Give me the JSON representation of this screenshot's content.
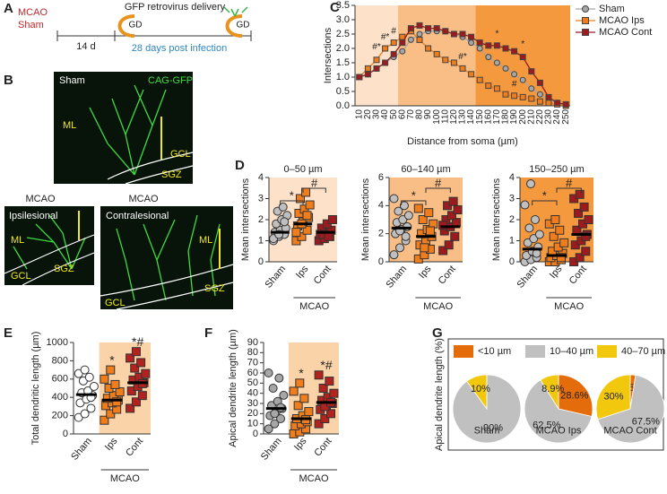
{
  "panels": [
    "A",
    "B",
    "C",
    "D",
    "E",
    "F",
    "G"
  ],
  "diagram": {
    "mcao": "MCAO",
    "sham": "Sham",
    "delivery": "GFP retrovirus delivery",
    "gd": [
      "GD",
      "GD"
    ],
    "interval": "14 d",
    "post": "28 days post infection"
  },
  "micrographs": [
    {
      "group": "Sham",
      "stain": "CAG-GFP",
      "labels": [
        "ML",
        "GCL",
        "SGZ"
      ]
    },
    {
      "group": "MCAO",
      "side": "Ipsilesional",
      "labels": [
        "ML",
        "GCL",
        "SGZ"
      ]
    },
    {
      "group": "MCAO",
      "side": "Contralesional",
      "labels": [
        "ML",
        "GCL",
        "SGZ"
      ]
    }
  ],
  "chart_data": [
    {
      "type": "line",
      "xlabel": "Distance from soma (µm)",
      "ylabel": "Intersections",
      "categories": [
        "10",
        "20",
        "30",
        "40",
        "50",
        "60",
        "70",
        "80",
        "90",
        "100",
        "110",
        "120",
        "130",
        "140",
        "150",
        "160",
        "170",
        "180",
        "190",
        "200",
        "210",
        "220",
        "230",
        "240",
        "250"
      ],
      "ylim": [
        0,
        3.5
      ],
      "yticks": [
        {
          "value": 0,
          "label": "0.0"
        },
        0.5,
        {
          "value": 1,
          "label": "1.0"
        },
        1.5,
        {
          "value": 2,
          "label": "2.0"
        },
        2.5,
        {
          "value": 3,
          "label": "3.0"
        },
        3.5
      ],
      "bands": [
        {
          "from": "10",
          "to": "50",
          "color": "#fde1c8"
        },
        {
          "from": "60",
          "to": "140",
          "color": "#f9bd86"
        },
        {
          "from": "150",
          "to": "250",
          "color": "#f5993f"
        }
      ],
      "series": [
        {
          "name": "Sham",
          "color": "#a6a6a6",
          "marker": "circle",
          "values": [
            1.0,
            1.1,
            1.3,
            1.5,
            1.7,
            1.9,
            2.3,
            2.5,
            2.6,
            2.6,
            2.6,
            2.5,
            2.4,
            2.2,
            2.0,
            1.7,
            1.5,
            1.3,
            1.1,
            0.9,
            0.6,
            0.4,
            0.2,
            0.1,
            0.05
          ]
        },
        {
          "name": "MCAO Ips",
          "color": "#f07d1c",
          "marker": "square",
          "values": [
            1.0,
            1.3,
            1.6,
            2.0,
            2.2,
            2.4,
            2.6,
            2.3,
            2.0,
            1.8,
            1.6,
            1.5,
            1.3,
            1.1,
            0.9,
            0.7,
            0.6,
            0.4,
            0.35,
            0.3,
            0.25,
            0.15,
            0.1,
            0.05,
            0.0
          ]
        },
        {
          "name": "MCAO Cont",
          "color": "#9b1b1e",
          "marker": "square",
          "values": [
            1.0,
            1.1,
            1.3,
            1.5,
            1.8,
            2.2,
            2.7,
            2.8,
            2.7,
            2.7,
            2.6,
            2.5,
            2.5,
            2.4,
            2.2,
            2.1,
            2.1,
            2.0,
            1.9,
            1.7,
            1.2,
            0.8,
            0.3,
            0.1,
            0.05
          ]
        }
      ],
      "annotations": [
        {
          "x": "30",
          "y": 2.05,
          "text": "#*"
        },
        {
          "x": "40",
          "y": 2.4,
          "text": "#*"
        },
        {
          "x": "50",
          "y": 2.6,
          "text": "#"
        },
        {
          "x": "130",
          "y": 1.7,
          "text": "#*"
        },
        {
          "x": "170",
          "y": 2.5,
          "text": "*"
        },
        {
          "x": "200",
          "y": 2.15,
          "text": "*"
        },
        {
          "x": "190",
          "y": 0.75,
          "text": "#"
        }
      ]
    },
    {
      "type": "strip",
      "title": "0–50 µm",
      "ylabel": "Mean intersections",
      "categories": [
        "Sham",
        "Ips",
        "Cont"
      ],
      "ylim": [
        0,
        4
      ],
      "yticks": [
        0,
        1,
        2,
        3,
        4
      ],
      "bands": [
        {
          "from": "Sham",
          "to": "Cont",
          "color": "#fde1c8"
        }
      ],
      "group_label": {
        "text": "MCAO",
        "from": "Ips",
        "to": "Cont"
      },
      "brackets": [
        {
          "from": "Sham",
          "to": "Ips",
          "text": "*"
        },
        {
          "from": "Ips",
          "to": "Cont",
          "text": "#"
        }
      ],
      "groups": [
        {
          "color": "#bfbfbf",
          "marker": "circle",
          "mean": 1.4,
          "values": [
            1.0,
            1.2,
            1.3,
            1.4,
            1.5,
            1.6,
            1.8,
            2.0,
            2.2,
            2.4,
            2.6,
            1.1,
            1.3,
            1.9
          ]
        },
        {
          "color": "#f07d1c",
          "marker": "square",
          "mean": 1.8,
          "values": [
            1.0,
            1.2,
            1.5,
            1.7,
            1.9,
            2.1,
            2.3,
            2.5,
            2.7,
            3.0,
            3.3,
            1.4,
            1.8,
            2.2
          ]
        },
        {
          "color": "#9b1b1e",
          "marker": "square",
          "mean": 1.4,
          "values": [
            1.0,
            1.1,
            1.2,
            1.3,
            1.4,
            1.5,
            1.6,
            1.8,
            2.0,
            1.3,
            1.2
          ]
        }
      ]
    },
    {
      "type": "strip",
      "title": "60–140 µm",
      "ylabel": "Mean intersections",
      "categories": [
        "Sham",
        "Ips",
        "Cont"
      ],
      "ylim": [
        0,
        6
      ],
      "yticks": [
        0,
        2,
        4,
        6
      ],
      "bands": [
        {
          "from": "Sham",
          "to": "Cont",
          "color": "#f9bd86"
        }
      ],
      "group_label": {
        "text": "MCAO",
        "from": "Ips",
        "to": "Cont"
      },
      "brackets": [
        {
          "from": "Sham",
          "to": "Ips",
          "text": "*"
        },
        {
          "from": "Ips",
          "to": "Cont",
          "text": "#"
        }
      ],
      "groups": [
        {
          "color": "#bfbfbf",
          "marker": "circle",
          "mean": 2.4,
          "values": [
            0.5,
            1.0,
            1.5,
            2.0,
            2.3,
            2.5,
            2.8,
            3.0,
            3.3,
            3.6,
            4.0,
            4.5,
            2.2,
            1.8
          ]
        },
        {
          "color": "#f07d1c",
          "marker": "square",
          "mean": 1.8,
          "values": [
            0.2,
            0.5,
            0.9,
            1.2,
            1.5,
            1.8,
            2.0,
            2.3,
            2.7,
            3.0,
            3.5,
            3.8,
            1.0,
            2.2
          ]
        },
        {
          "color": "#9b1b1e",
          "marker": "square",
          "mean": 2.5,
          "values": [
            0.8,
            1.2,
            1.8,
            2.2,
            2.5,
            2.8,
            3.0,
            3.3,
            3.7,
            4.0,
            4.3,
            2.6
          ]
        }
      ]
    },
    {
      "type": "strip",
      "title": "150–250 µm",
      "ylabel": "Mean intersections",
      "categories": [
        "Sham",
        "Ips",
        "Cont"
      ],
      "ylim": [
        0,
        4
      ],
      "yticks": [
        0,
        1,
        2,
        3,
        4
      ],
      "bands": [
        {
          "from": "Sham",
          "to": "Cont",
          "color": "#f5993f"
        }
      ],
      "group_label": {
        "text": "MCAO",
        "from": "Ips",
        "to": "Cont"
      },
      "brackets": [
        {
          "from": "Sham",
          "to": "Ips",
          "text": "*"
        },
        {
          "from": "Ips",
          "to": "Cont",
          "text": "#"
        }
      ],
      "groups": [
        {
          "color": "#bfbfbf",
          "marker": "circle",
          "mean": 0.6,
          "values": [
            0,
            0.1,
            0.2,
            0.3,
            0.5,
            0.7,
            0.9,
            1.1,
            1.3,
            1.6,
            2.0,
            2.7,
            3.7,
            0.4
          ]
        },
        {
          "color": "#f07d1c",
          "marker": "square",
          "mean": 0.3,
          "values": [
            0,
            0,
            0.1,
            0.2,
            0.3,
            0.4,
            0.5,
            0.7,
            0.9,
            1.2,
            1.5,
            1.8,
            2.0,
            0.2
          ]
        },
        {
          "color": "#9b1b1e",
          "marker": "square",
          "mean": 1.3,
          "values": [
            0,
            0.2,
            0.5,
            0.8,
            1.0,
            1.3,
            1.5,
            1.8,
            2.0,
            2.3,
            2.6,
            3.0,
            3.2,
            1.2
          ]
        }
      ]
    },
    {
      "type": "strip",
      "ylabel": "Total dendritic length (µm)",
      "categories": [
        "Sham",
        "Ips",
        "Cont"
      ],
      "ylim": [
        0,
        1000
      ],
      "yticks": [
        0,
        200,
        400,
        600,
        800,
        1000
      ],
      "bands": [
        {
          "from": "Ips",
          "to": "Cont",
          "color": "#fbd3a8"
        }
      ],
      "group_label": {
        "text": "MCAO",
        "from": "Ips",
        "to": "Cont"
      },
      "annotations": [
        null,
        "*",
        "*#"
      ],
      "groups": [
        {
          "color": "#ffffff",
          "marker": "circle",
          "mean": 430,
          "values": [
            180,
            220,
            280,
            340,
            380,
            420,
            450,
            470,
            520,
            580,
            620,
            660,
            700,
            400
          ]
        },
        {
          "color": "#f07d1c",
          "marker": "square",
          "mean": 370,
          "values": [
            150,
            220,
            270,
            310,
            340,
            370,
            390,
            420,
            460,
            500,
            540,
            600,
            700,
            350
          ]
        },
        {
          "color": "#b2221f",
          "marker": "square",
          "mean": 560,
          "values": [
            280,
            350,
            420,
            470,
            520,
            560,
            590,
            620,
            660,
            720,
            780,
            830,
            900,
            550
          ]
        }
      ]
    },
    {
      "type": "strip",
      "ylabel": "Apical dendrite length (µm)",
      "categories": [
        "Sham",
        "Ips",
        "Cont"
      ],
      "ylim": [
        0,
        90
      ],
      "yticks": [
        0,
        10,
        20,
        30,
        40,
        50,
        60,
        70,
        80,
        90
      ],
      "bands": [
        {
          "from": "Ips",
          "to": "Cont",
          "color": "#fbd3a8"
        }
      ],
      "group_label": {
        "text": "MCAO",
        "from": "Ips",
        "to": "Cont"
      },
      "annotations": [
        null,
        "*",
        "*#"
      ],
      "groups": [
        {
          "color": "#a6a6a6",
          "marker": "circle",
          "mean": 25,
          "values": [
            5,
            10,
            15,
            18,
            22,
            25,
            28,
            32,
            38,
            45,
            55,
            60,
            20,
            26
          ]
        },
        {
          "color": "#f07d1c",
          "marker": "square",
          "mean": 15,
          "values": [
            0,
            2,
            5,
            8,
            10,
            12,
            15,
            18,
            22,
            28,
            35,
            42,
            50,
            14
          ]
        },
        {
          "color": "#b2221f",
          "marker": "square",
          "mean": 31,
          "values": [
            10,
            15,
            20,
            24,
            28,
            30,
            33,
            36,
            40,
            45,
            52,
            58,
            27,
            31
          ]
        }
      ]
    },
    {
      "type": "pie",
      "ylabel": "Apical dendrite length (%)",
      "categories": [
        "<10 µm",
        "10–40 µm",
        "40–70 µm"
      ],
      "colors": [
        "#e46c0a",
        "#c0c0c0",
        "#f2c80f"
      ],
      "pies": [
        {
          "name": "Sham",
          "values": [
            0,
            90,
            10
          ],
          "value_labels": [
            null,
            "90%",
            "10%"
          ]
        },
        {
          "name": "MCAO Ips",
          "values": [
            28.6,
            62.5,
            8.9
          ],
          "value_labels": [
            "28.6%",
            "62.5%",
            "8.9%"
          ]
        },
        {
          "name": "MCAO Cont",
          "values": [
            2.5,
            67.5,
            30
          ],
          "value_labels": [
            "2.5%",
            "67.5%",
            "30%"
          ]
        }
      ]
    }
  ]
}
